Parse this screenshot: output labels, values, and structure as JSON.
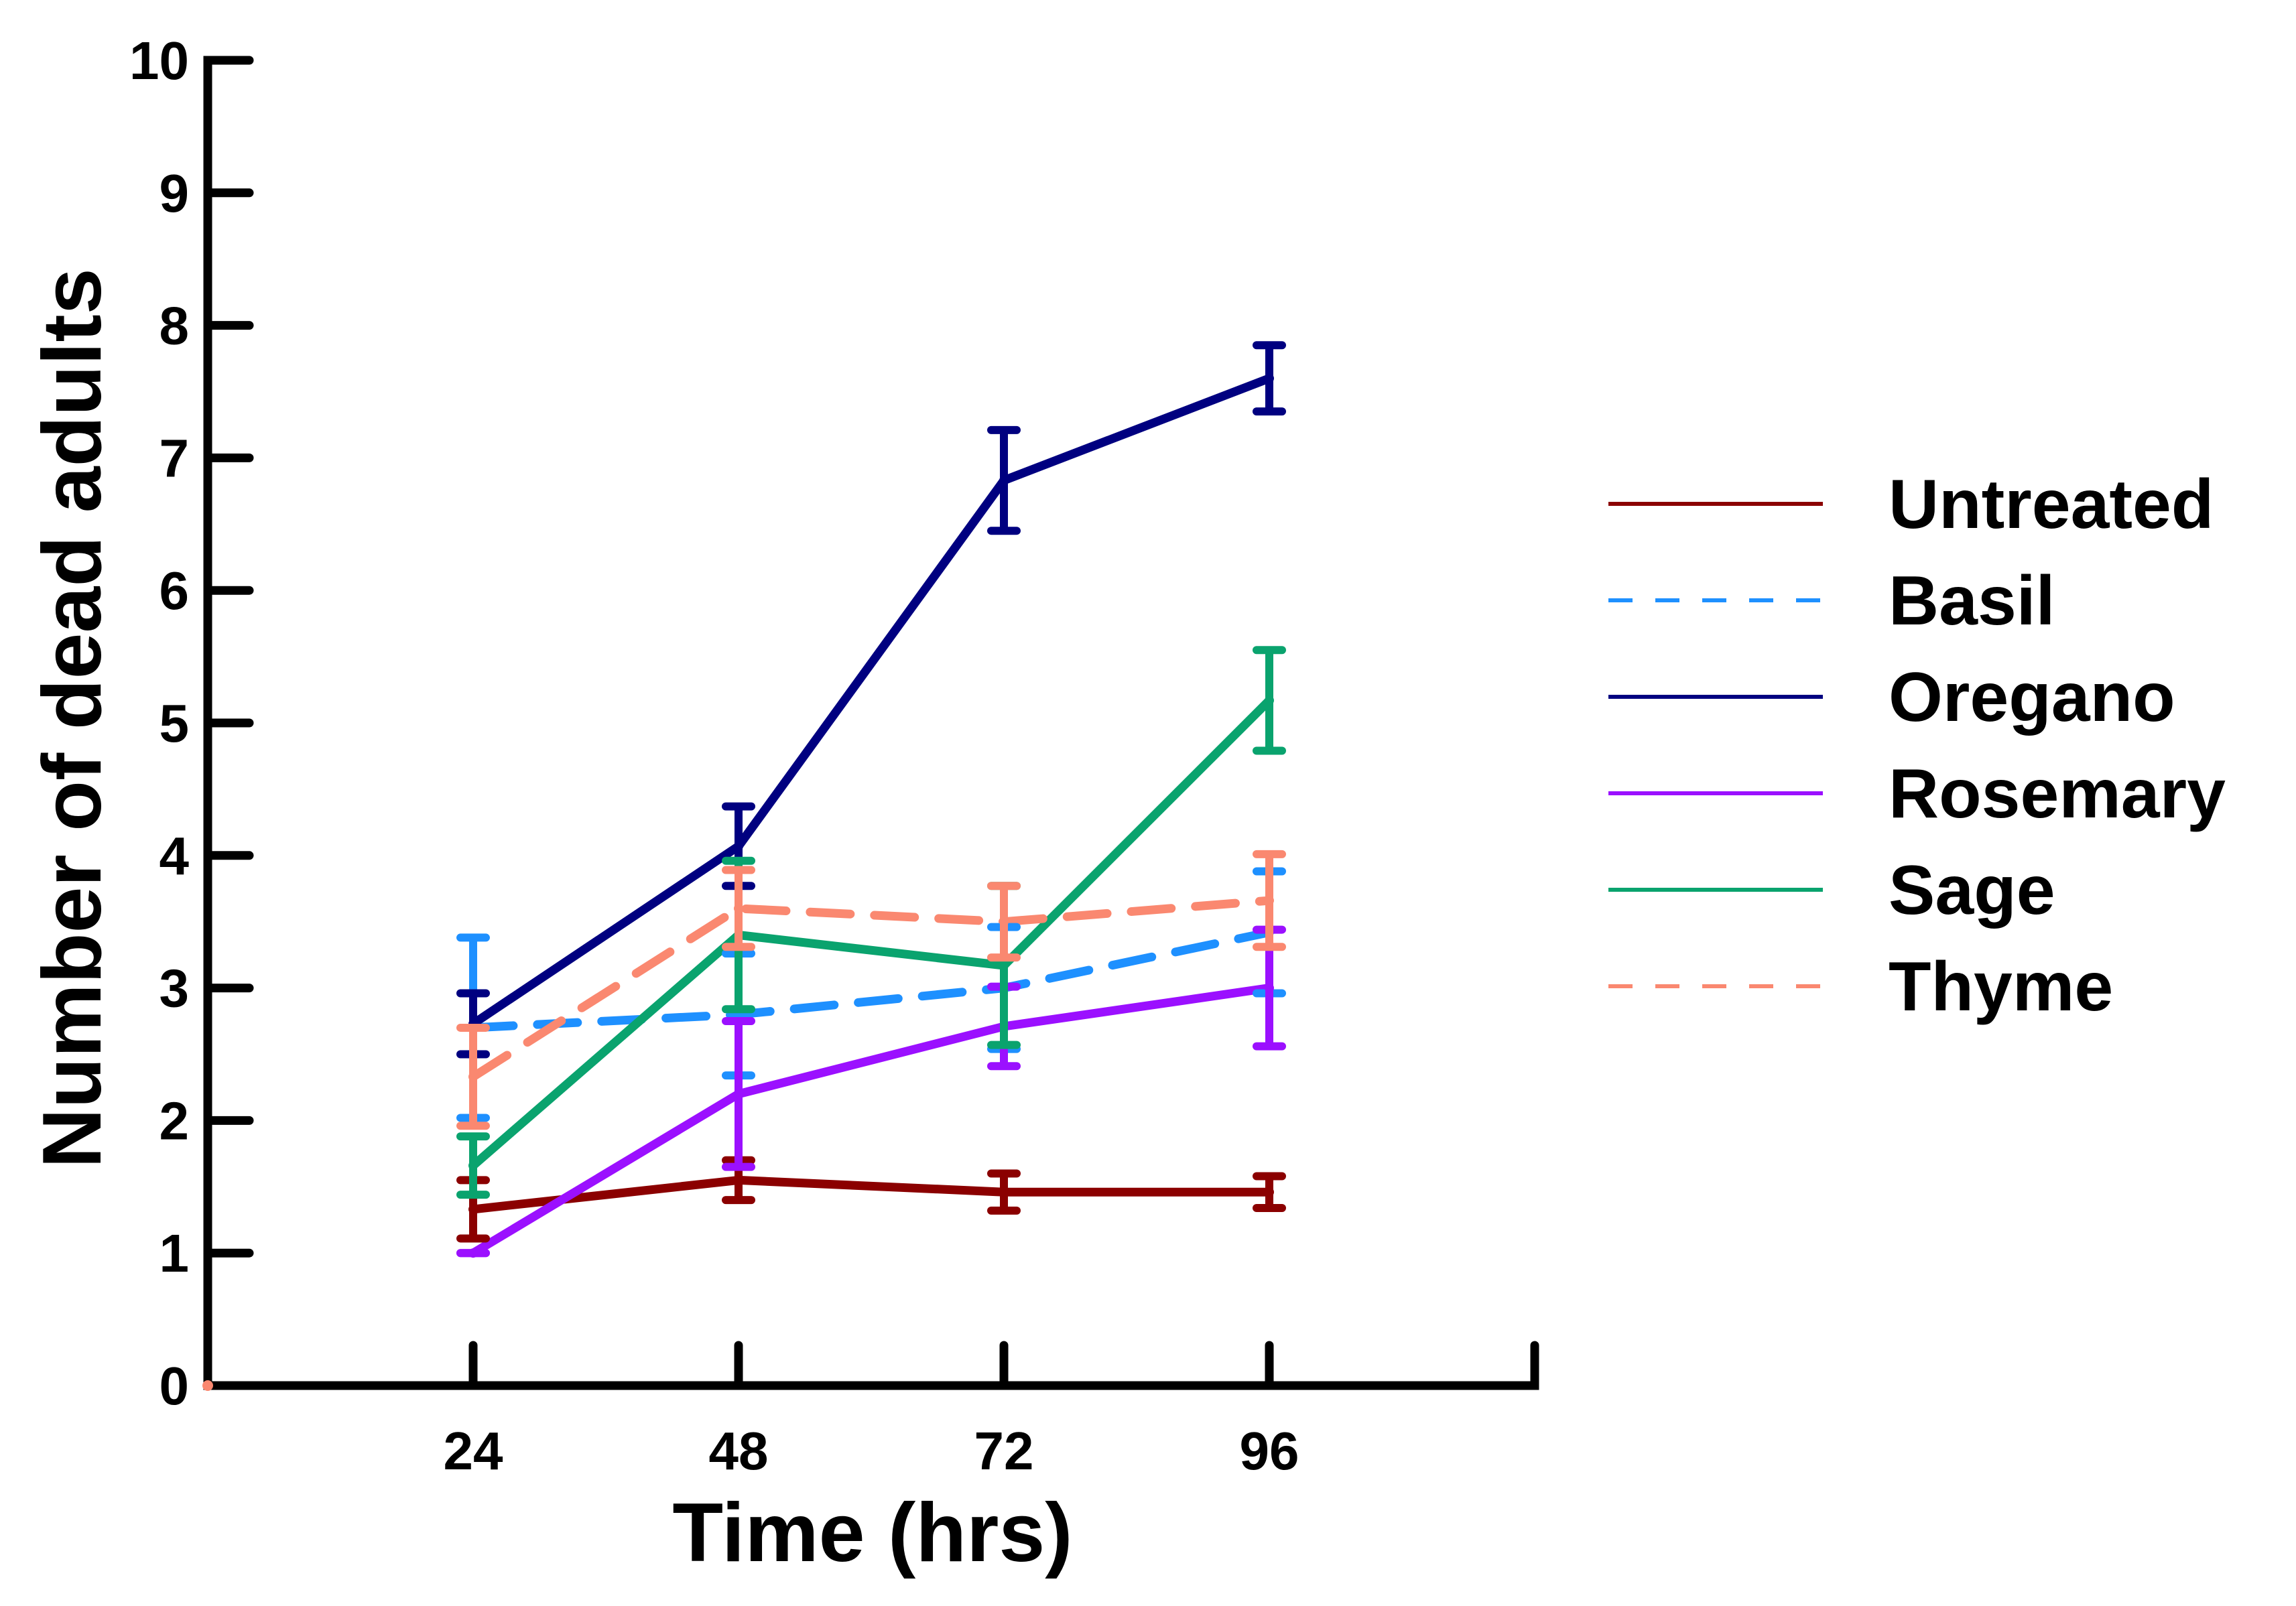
{
  "chart_data": {
    "type": "line",
    "title": "",
    "xlabel": "Time (hrs)",
    "ylabel": "Number of dead adults",
    "x": [
      24,
      48,
      72,
      96
    ],
    "xlim": [
      0,
      120
    ],
    "ylim": [
      0,
      10
    ],
    "yticks": [
      0,
      1,
      2,
      3,
      4,
      5,
      6,
      7,
      8,
      9,
      10
    ],
    "xticks": [
      24,
      48,
      72,
      96
    ],
    "grid": false,
    "legend_position": "right",
    "series": [
      {
        "name": "Untreated",
        "color": "#8b0000",
        "dash": "solid",
        "values": [
          1.33,
          1.55,
          1.46,
          1.46
        ],
        "errors": [
          0.22,
          0.15,
          0.14,
          0.12
        ]
      },
      {
        "name": "Basil",
        "color": "#1e90ff",
        "dash": "dashed",
        "values": [
          2.7,
          2.8,
          3.0,
          3.42
        ],
        "errors": [
          0.68,
          0.46,
          0.46,
          0.46
        ]
      },
      {
        "name": "Oregano",
        "color": "#000080",
        "dash": "solid",
        "values": [
          2.73,
          4.07,
          6.83,
          7.6
        ],
        "errors": [
          0.23,
          0.3,
          0.38,
          0.25
        ]
      },
      {
        "name": "Rosemary",
        "color": "#9b10ff",
        "dash": "solid",
        "values": [
          1.0,
          2.2,
          2.71,
          3.0
        ],
        "errors": [
          0.0,
          0.55,
          0.3,
          0.44
        ]
      },
      {
        "name": "Sage",
        "color": "#0aa36e",
        "dash": "solid",
        "values": [
          1.66,
          3.4,
          3.17,
          5.17
        ],
        "errors": [
          0.22,
          0.56,
          0.6,
          0.38
        ]
      },
      {
        "name": "Thyme",
        "color": "#fa8870",
        "dash": "dashed",
        "values": [
          2.33,
          3.6,
          3.5,
          3.66
        ],
        "errors": [
          0.37,
          0.29,
          0.27,
          0.35
        ]
      }
    ]
  }
}
